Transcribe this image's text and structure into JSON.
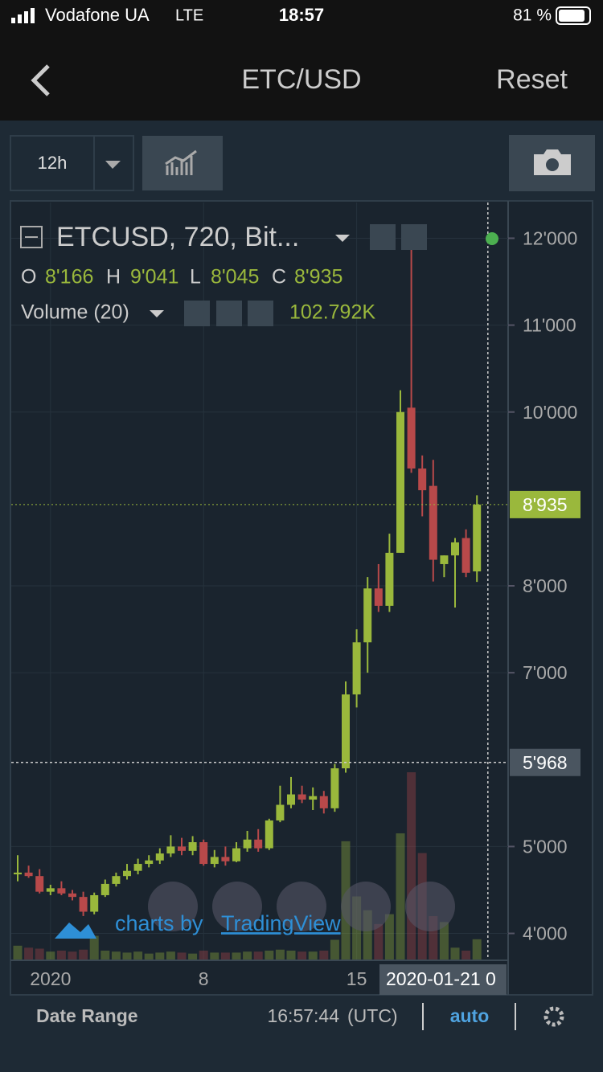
{
  "status_bar": {
    "carrier": "Vodafone UA",
    "network": "LTE",
    "time": "18:57",
    "battery": "81 %"
  },
  "nav": {
    "title": "ETC/USD",
    "reset": "Reset"
  },
  "toolbar": {
    "interval": "12h"
  },
  "legend": {
    "symbol": "ETCUSD, 720, Bit...",
    "o_label": "O",
    "o": "8'166",
    "h_label": "H",
    "h": "9'041",
    "l_label": "L",
    "l": "8'045",
    "c_label": "C",
    "c": "8'935",
    "volume_name": "Volume (20)",
    "volume_value": "102.792K"
  },
  "watermark": {
    "prefix": "charts by",
    "brand": "TradingView"
  },
  "bottom_bar": {
    "date_range": "Date Range",
    "time": "16:57:44",
    "tz": "(UTC)",
    "auto": "auto"
  },
  "chart_data": {
    "type": "candlestick",
    "categories": [
      null,
      null,
      null,
      "2020",
      null,
      null,
      null,
      null,
      null,
      null,
      null,
      null,
      null,
      null,
      null,
      null,
      null,
      "8",
      null,
      null,
      null,
      null,
      null,
      null,
      null,
      null,
      null,
      null,
      null,
      null,
      null,
      "15",
      null,
      null,
      null,
      null,
      null,
      null,
      null,
      null,
      null,
      null,
      null
    ],
    "open": [
      4680,
      4700,
      4660,
      4480,
      4520,
      4460,
      4420,
      4250,
      4440,
      4570,
      4660,
      4720,
      4800,
      4840,
      4920,
      5000,
      4950,
      5050,
      4800,
      4880,
      4830,
      4980,
      5080,
      4980,
      5300,
      5480,
      5600,
      5540,
      5580,
      5440,
      5900,
      6750,
      7350,
      7970,
      7770,
      8380,
      10050,
      9350,
      9150,
      8250,
      8350,
      8550,
      8166
    ],
    "high": [
      4900,
      4780,
      4740,
      4560,
      4600,
      4500,
      4480,
      4470,
      4620,
      4700,
      4800,
      4860,
      4900,
      4980,
      5130,
      5100,
      5120,
      5080,
      4960,
      5000,
      5050,
      5180,
      5200,
      5320,
      5700,
      5800,
      5700,
      5680,
      5640,
      5950,
      6900,
      7500,
      8100,
      8250,
      8600,
      10250,
      12000,
      9500,
      9450,
      8350,
      8550,
      8650,
      9041
    ],
    "low": [
      4600,
      4640,
      4460,
      4440,
      4440,
      4380,
      4200,
      4220,
      4420,
      4540,
      4620,
      4680,
      4760,
      4800,
      4880,
      4900,
      4900,
      4780,
      4760,
      4780,
      4820,
      4940,
      4940,
      4960,
      5280,
      5440,
      5500,
      5420,
      5380,
      5400,
      5850,
      6600,
      7000,
      7700,
      7700,
      8380,
      9300,
      8800,
      8050,
      8100,
      7750,
      8100,
      8045
    ],
    "close": [
      4700,
      4660,
      4480,
      4520,
      4460,
      4420,
      4250,
      4440,
      4570,
      4660,
      4720,
      4800,
      4840,
      4920,
      5000,
      4950,
      5050,
      4800,
      4880,
      4830,
      4980,
      5080,
      4980,
      5300,
      5480,
      5600,
      5540,
      5580,
      5440,
      5900,
      6750,
      7350,
      7970,
      7770,
      8380,
      10000,
      9350,
      9100,
      8300,
      8350,
      8500,
      8150,
      8935
    ],
    "volume": [
      70,
      60,
      55,
      40,
      45,
      40,
      50,
      120,
      45,
      40,
      35,
      40,
      30,
      35,
      40,
      35,
      30,
      45,
      35,
      35,
      35,
      40,
      40,
      45,
      50,
      45,
      40,
      40,
      45,
      100,
      600,
      320,
      250,
      180,
      230,
      640,
      950,
      540,
      220,
      190,
      60,
      45,
      102.792
    ],
    "up_color": "#9ab83c",
    "down_color": "#b8494a",
    "ylim": [
      3700,
      12300
    ],
    "yticks": [
      {
        "value": 4000,
        "label": "4'000"
      },
      {
        "value": 5000,
        "label": "5'000"
      },
      {
        "value": 7000,
        "label": "7'000"
      },
      {
        "value": 8000,
        "label": "8'000"
      },
      {
        "value": 10000,
        "label": "10'000"
      },
      {
        "value": 11000,
        "label": "11'000"
      },
      {
        "value": 12000,
        "label": "12'000"
      }
    ],
    "last_price": {
      "value": 8935,
      "label": "8'935"
    },
    "crosshair": {
      "price": {
        "value": 5968,
        "label": "5'968"
      },
      "date": "2020-01-21 0"
    },
    "grid": true
  }
}
